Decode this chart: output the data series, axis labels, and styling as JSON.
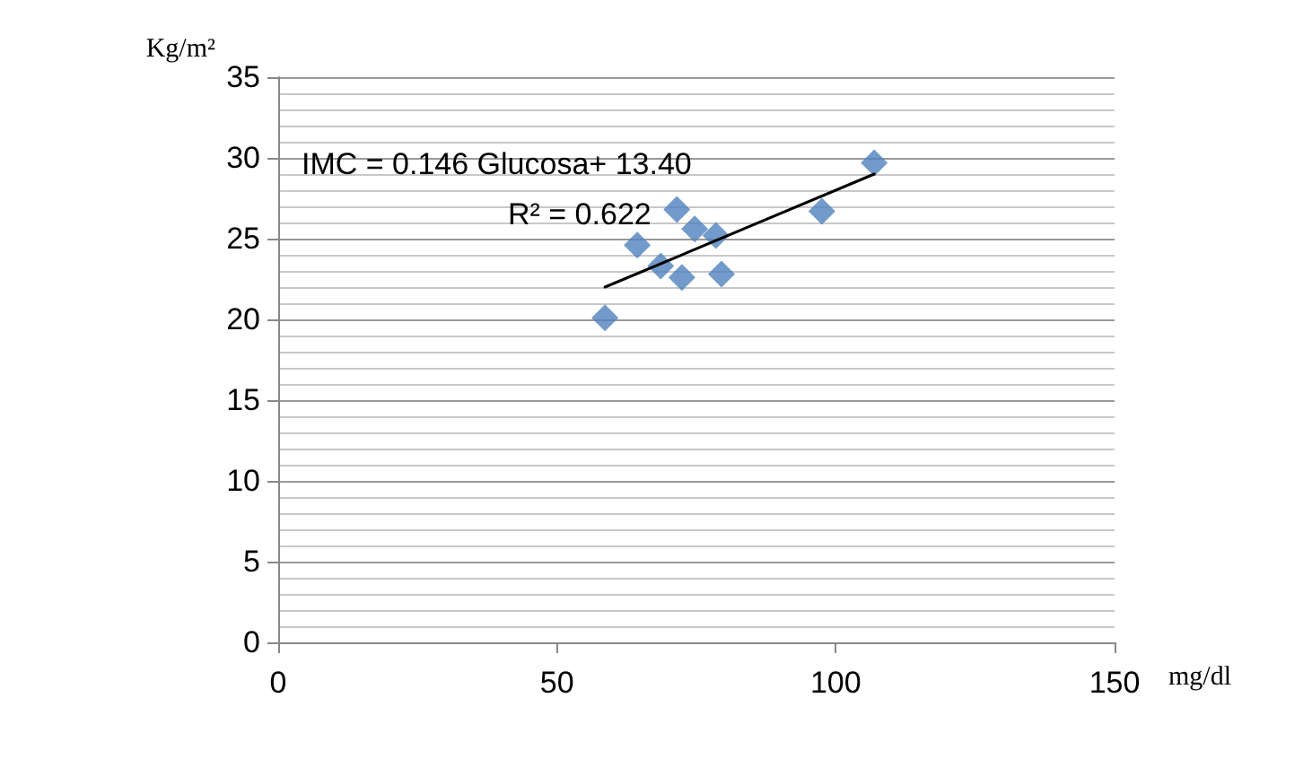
{
  "chart_data": {
    "type": "scatter",
    "xlabel": "mg/dl",
    "ylabel": "Kg/m²",
    "annotations": [
      "IMC = 0.146 Glucosa+ 13.40",
      "R² = 0.622"
    ],
    "xlim": [
      0,
      150
    ],
    "xticks": [
      0,
      50,
      100,
      150
    ],
    "ylim": [
      0,
      35
    ],
    "yticks": [
      0,
      5,
      10,
      15,
      20,
      25,
      30,
      35
    ],
    "grid": "y",
    "marker": "diamond",
    "series": [
      {
        "color": "#4f81bd",
        "x": [
          58.6,
          64.4,
          68.6,
          71.5,
          72.4,
          74.7,
          78.5,
          79.5,
          97.5,
          106.9
        ],
        "values": [
          20.1,
          24.6,
          23.3,
          26.8,
          22.6,
          25.6,
          25.2,
          22.8,
          26.7,
          29.7
        ]
      },
      {
        "type": "line",
        "color": "#000000",
        "marker": "none",
        "line_style": "solid",
        "x": [
          58.6,
          106.9
        ],
        "values": [
          22.0,
          29.0
        ]
      }
    ]
  }
}
